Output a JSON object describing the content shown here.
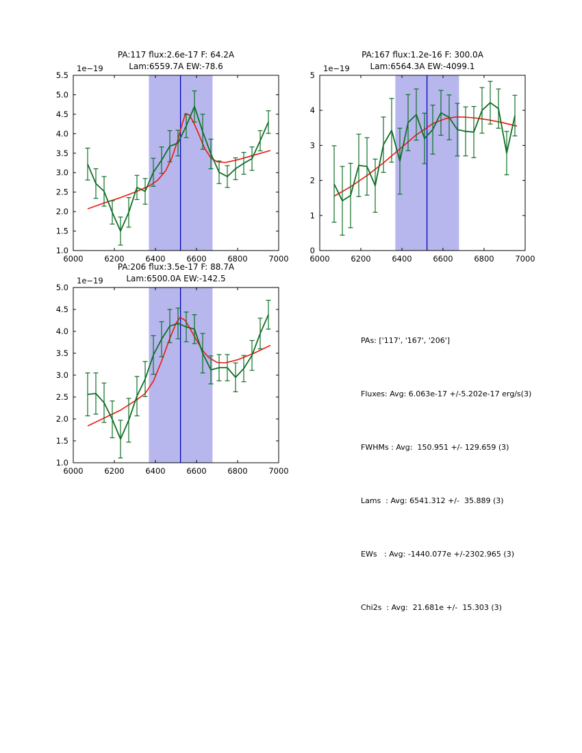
{
  "figure": {
    "background": "#ffffff"
  },
  "colors": {
    "spectrum_line": "#0d6e24",
    "errorbar": "#0d6e24",
    "fit_line": "#ee1c14",
    "band_fill": "#b7b7ee",
    "center_line": "#0000bb",
    "axis": "#000000",
    "text": "#000000"
  },
  "stats_panel": {
    "lines": [
      "PAs: ['117', '167', '206']",
      "Fluxes: Avg: 6.063e-17 +/-5.202e-17 erg/s(3)",
      "FWHMs : Avg:  150.951 +/- 129.659 (3)",
      "Lams  : Avg: 6541.312 +/-  35.889 (3)",
      "EWs   : Avg: -1440.077e +/-2302.965 (3)",
      "Chi2s  : Avg:  21.681e +/-  15.303 (3)"
    ]
  },
  "chart_data": [
    {
      "type": "line",
      "title_line1": "PA:117 flux:2.6e-17 F: 64.2A",
      "title_line2": "Lam:6559.7A EW:-78.6",
      "offset_label": "1e−19",
      "xlim": [
        6000,
        7000
      ],
      "ylim": [
        1.0,
        5.5
      ],
      "xticks": [
        6000,
        6200,
        6400,
        6600,
        6800,
        7000
      ],
      "xtick_labels": [
        "6000",
        "6200",
        "6400",
        "6600",
        "6800",
        "7000"
      ],
      "yticks": [
        1.0,
        1.5,
        2.0,
        2.5,
        3.0,
        3.5,
        4.0,
        4.5,
        5.0,
        5.5
      ],
      "ytick_labels": [
        "1.0",
        "1.5",
        "2.0",
        "2.5",
        "3.0",
        "3.5",
        "4.0",
        "4.5",
        "5.0",
        "5.5"
      ],
      "band": [
        6368,
        6678
      ],
      "vline": 6522,
      "grid": false,
      "series": [
        {
          "name": "fit",
          "x": [
            6070,
            6150,
            6230,
            6310,
            6370,
            6410,
            6450,
            6480,
            6510,
            6530,
            6547,
            6565,
            6585,
            6610,
            6640,
            6670,
            6700,
            6740,
            6800,
            6880,
            6960
          ],
          "y": [
            2.07,
            2.22,
            2.36,
            2.52,
            2.66,
            2.8,
            3.05,
            3.38,
            3.85,
            4.25,
            4.52,
            4.48,
            4.3,
            4.0,
            3.62,
            3.38,
            3.28,
            3.26,
            3.33,
            3.45,
            3.57
          ]
        },
        {
          "name": "spectrum",
          "x": [
            6070,
            6110,
            6150,
            6190,
            6230,
            6270,
            6310,
            6350,
            6390,
            6430,
            6470,
            6510,
            6550,
            6590,
            6630,
            6670,
            6710,
            6750,
            6790,
            6830,
            6870,
            6910,
            6950
          ],
          "y": [
            3.22,
            2.72,
            2.52,
            1.98,
            1.5,
            1.98,
            2.62,
            2.52,
            3.01,
            3.32,
            3.68,
            3.76,
            4.2,
            4.7,
            4.05,
            3.48,
            3.01,
            2.9,
            3.1,
            3.24,
            3.36,
            3.82,
            4.3
          ],
          "yerr": [
            0.41,
            0.38,
            0.38,
            0.3,
            0.36,
            0.38,
            0.31,
            0.33,
            0.36,
            0.34,
            0.4,
            0.33,
            0.3,
            0.4,
            0.45,
            0.38,
            0.29,
            0.28,
            0.28,
            0.28,
            0.3,
            0.26,
            0.29
          ]
        }
      ]
    },
    {
      "type": "line",
      "title_line1": "PA:167 flux:1.2e-16 F: 300.0A",
      "title_line2": "Lam:6564.3A EW:-4099.1",
      "offset_label": "1e−19",
      "xlim": [
        6000,
        7000
      ],
      "ylim": [
        0,
        5
      ],
      "xticks": [
        6000,
        6200,
        6400,
        6600,
        6800,
        7000
      ],
      "xtick_labels": [
        "6000",
        "6200",
        "6400",
        "6600",
        "6800",
        "7000"
      ],
      "yticks": [
        0,
        1,
        2,
        3,
        4,
        5
      ],
      "ytick_labels": [
        "0",
        "1",
        "2",
        "3",
        "4",
        "5"
      ],
      "band": [
        6368,
        6678
      ],
      "vline": 6522,
      "grid": false,
      "series": [
        {
          "name": "fit",
          "x": [
            6070,
            6150,
            6230,
            6310,
            6390,
            6470,
            6550,
            6610,
            6660,
            6700,
            6760,
            6820,
            6890,
            6960
          ],
          "y": [
            1.55,
            1.82,
            2.14,
            2.5,
            2.9,
            3.3,
            3.62,
            3.76,
            3.81,
            3.81,
            3.78,
            3.73,
            3.65,
            3.55
          ]
        },
        {
          "name": "spectrum",
          "x": [
            6070,
            6110,
            6150,
            6190,
            6230,
            6270,
            6310,
            6350,
            6390,
            6430,
            6470,
            6510,
            6550,
            6590,
            6630,
            6670,
            6710,
            6750,
            6790,
            6830,
            6870,
            6910,
            6950
          ],
          "y": [
            1.9,
            1.42,
            1.57,
            2.43,
            2.4,
            1.85,
            3.02,
            3.43,
            2.55,
            3.65,
            3.88,
            3.2,
            3.45,
            3.93,
            3.8,
            3.45,
            3.4,
            3.38,
            4.0,
            4.22,
            4.05,
            2.78,
            3.85
          ],
          "yerr": [
            1.09,
            0.98,
            0.92,
            0.89,
            0.82,
            0.76,
            0.79,
            0.91,
            0.94,
            0.8,
            0.73,
            0.72,
            0.7,
            0.64,
            0.64,
            0.75,
            0.7,
            0.73,
            0.65,
            0.61,
            0.56,
            0.62,
            0.58
          ]
        }
      ]
    },
    {
      "type": "line",
      "title_line1": "PA:206 flux:3.5e-17 F: 88.7A",
      "title_line2": "Lam:6500.0A EW:-142.5",
      "offset_label": "1e−19",
      "xlim": [
        6000,
        7000
      ],
      "ylim": [
        1.0,
        5.0
      ],
      "xticks": [
        6000,
        6200,
        6400,
        6600,
        6800,
        7000
      ],
      "xtick_labels": [
        "6000",
        "6200",
        "6400",
        "6600",
        "6800",
        "7000"
      ],
      "yticks": [
        1.0,
        1.5,
        2.0,
        2.5,
        3.0,
        3.5,
        4.0,
        4.5,
        5.0
      ],
      "ytick_labels": [
        "1.0",
        "1.5",
        "2.0",
        "2.5",
        "3.0",
        "3.5",
        "4.0",
        "4.5",
        "5.0"
      ],
      "band": [
        6368,
        6678
      ],
      "vline": 6522,
      "grid": false,
      "series": [
        {
          "name": "fit",
          "x": [
            6070,
            6150,
            6230,
            6310,
            6350,
            6390,
            6430,
            6470,
            6500,
            6520,
            6545,
            6570,
            6600,
            6630,
            6660,
            6700,
            6740,
            6800,
            6880,
            6960
          ],
          "y": [
            1.84,
            2.02,
            2.2,
            2.44,
            2.58,
            2.86,
            3.32,
            3.84,
            4.18,
            4.32,
            4.25,
            4.05,
            3.8,
            3.56,
            3.4,
            3.29,
            3.28,
            3.35,
            3.5,
            3.68
          ]
        },
        {
          "name": "spectrum",
          "x": [
            6070,
            6110,
            6150,
            6190,
            6230,
            6270,
            6310,
            6350,
            6390,
            6430,
            6470,
            6510,
            6550,
            6590,
            6630,
            6670,
            6710,
            6750,
            6790,
            6830,
            6870,
            6910,
            6950
          ],
          "y": [
            2.56,
            2.58,
            2.37,
            1.99,
            1.54,
            1.97,
            2.52,
            2.91,
            3.46,
            3.82,
            4.12,
            4.18,
            4.1,
            4.05,
            3.5,
            3.12,
            3.17,
            3.17,
            2.95,
            3.15,
            3.45,
            3.95,
            4.38
          ],
          "yerr": [
            0.49,
            0.47,
            0.45,
            0.42,
            0.43,
            0.5,
            0.45,
            0.4,
            0.44,
            0.4,
            0.38,
            0.35,
            0.34,
            0.33,
            0.45,
            0.32,
            0.3,
            0.3,
            0.33,
            0.3,
            0.34,
            0.35,
            0.33
          ]
        }
      ]
    }
  ]
}
